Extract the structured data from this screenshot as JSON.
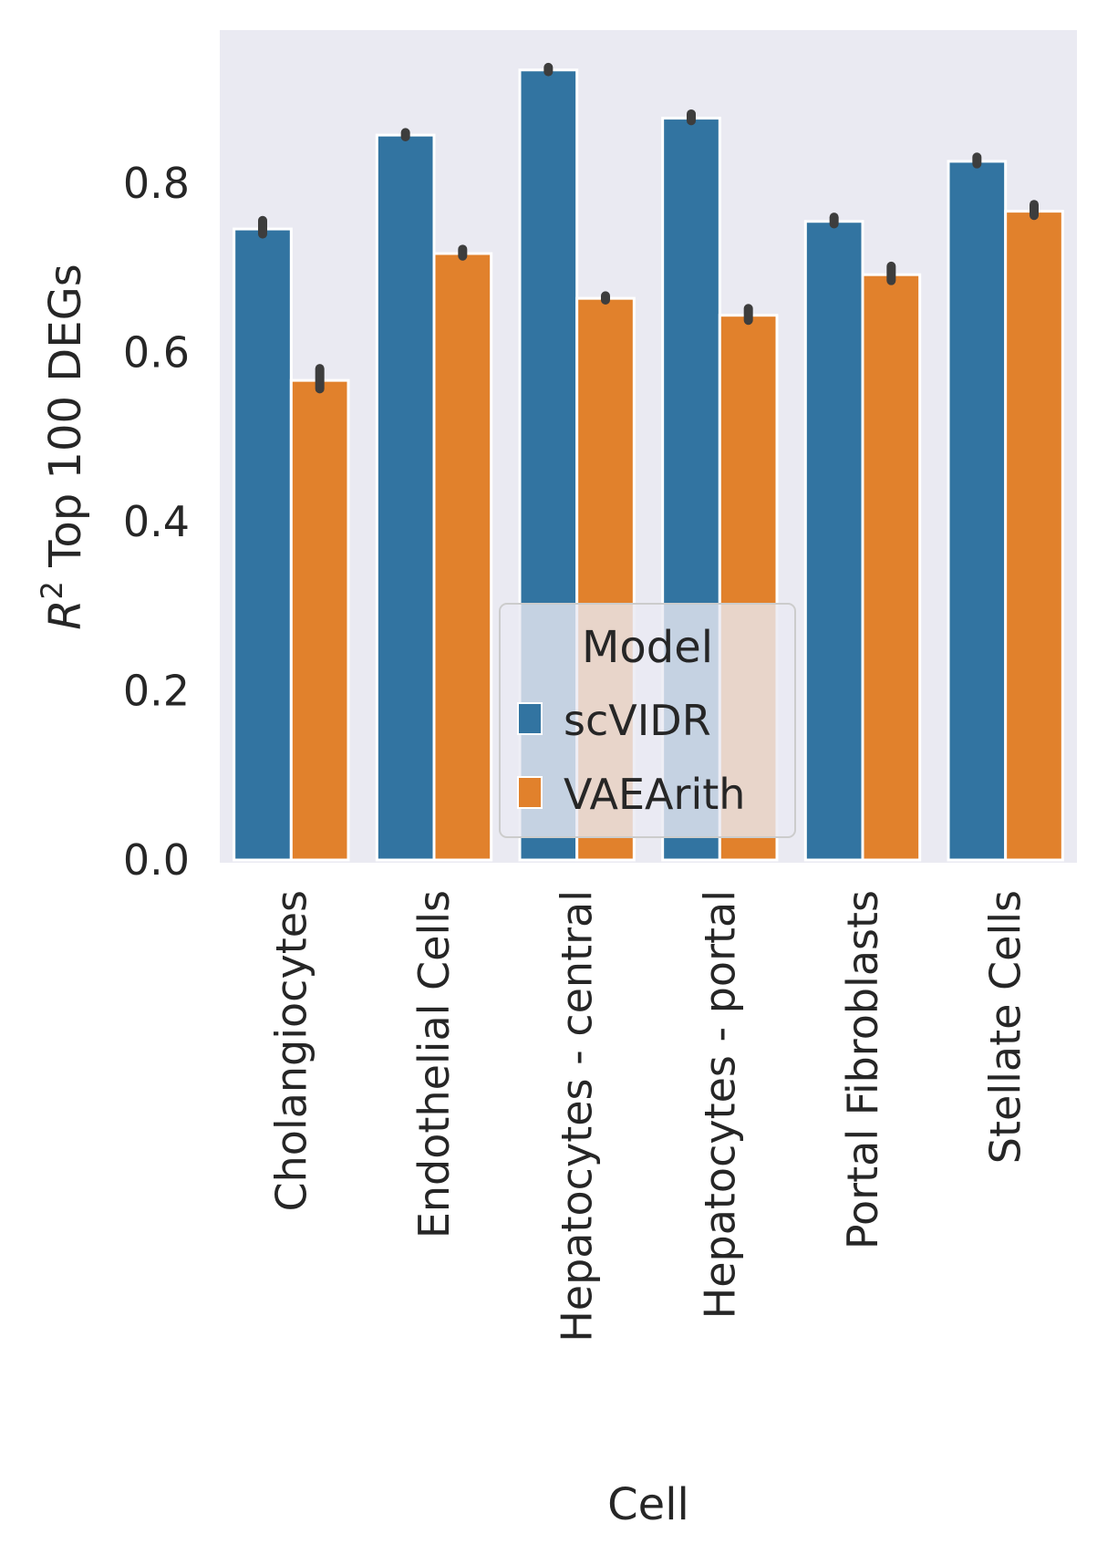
{
  "chart_data": {
    "type": "bar",
    "xlabel": "Cell",
    "ylabel_main": "R",
    "ylabel_sup": "2",
    "ylabel_rest": " Top 100 DEGs",
    "ylim": [
      0,
      0.98
    ],
    "yticks": [
      0.0,
      0.2,
      0.4,
      0.6,
      0.8
    ],
    "ytick_labels": [
      "0.0",
      "0.2",
      "0.4",
      "0.6",
      "0.8"
    ],
    "grid": false,
    "background": "#eaeaf2",
    "categories": [
      "Cholangiocytes",
      "Endothelial Cells",
      "Hepatocytes - central",
      "Hepatocytes - portal",
      "Portal Fibroblasts",
      "Stellate Cells"
    ],
    "series": [
      {
        "name": "scVIDR",
        "color": "#3274a1",
        "values": [
          0.746,
          0.857,
          0.934,
          0.877,
          0.755,
          0.826
        ],
        "err_low": [
          0.74,
          0.855,
          0.932,
          0.874,
          0.752,
          0.823
        ],
        "err_high": [
          0.756,
          0.86,
          0.937,
          0.882,
          0.76,
          0.831
        ]
      },
      {
        "name": "VAEArith",
        "color": "#e1812c",
        "values": [
          0.567,
          0.717,
          0.664,
          0.644,
          0.692,
          0.767
        ],
        "err_low": [
          0.557,
          0.714,
          0.662,
          0.638,
          0.685,
          0.762
        ],
        "err_high": [
          0.581,
          0.722,
          0.667,
          0.652,
          0.702,
          0.775
        ]
      }
    ],
    "legend": {
      "title": "Model",
      "placement": "lower-center"
    }
  }
}
